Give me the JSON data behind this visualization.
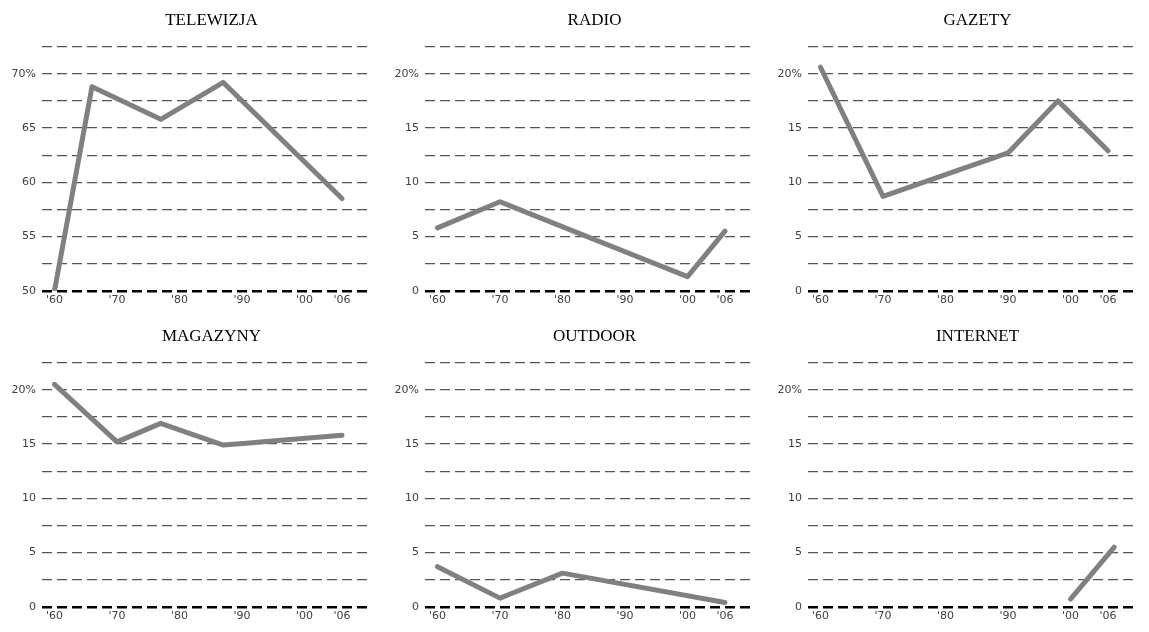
{
  "chart_data": [
    {
      "type": "line",
      "title": "TELEWIZJA",
      "x": [
        1960,
        1966,
        1977,
        1987,
        2006
      ],
      "values": [
        50,
        68.8,
        65.8,
        69.2,
        58.5
      ],
      "color": "#808080",
      "xlim": [
        1958,
        2010
      ],
      "xticks": [
        {
          "value": 1960,
          "label": "'60"
        },
        {
          "value": 1970,
          "label": "'70"
        },
        {
          "value": 1980,
          "label": "'80"
        },
        {
          "value": 1990,
          "label": "'90"
        },
        {
          "value": 2000,
          "label": "'00"
        },
        {
          "value": 2006,
          "label": "'06"
        }
      ],
      "ylim": [
        50,
        72.5
      ],
      "yticks": [
        50,
        {
          "value": 52.5,
          "label": null
        },
        55,
        {
          "value": 57.5,
          "label": null
        },
        60,
        {
          "value": 62.5,
          "label": null
        },
        65,
        {
          "value": 67.5,
          "label": null
        },
        {
          "value": 70,
          "label": "70%"
        },
        {
          "value": 72.5,
          "label": null
        }
      ],
      "grid": "y",
      "marker": "none"
    },
    {
      "type": "line",
      "title": "RADIO",
      "x": [
        1960,
        1970,
        2000,
        2006
      ],
      "values": [
        5.8,
        8.2,
        1.3,
        5.5
      ],
      "color": "#808080",
      "xlim": [
        1958,
        2010
      ],
      "xticks": [
        {
          "value": 1960,
          "label": "'60"
        },
        {
          "value": 1970,
          "label": "'70"
        },
        {
          "value": 1980,
          "label": "'80"
        },
        {
          "value": 1990,
          "label": "'90"
        },
        {
          "value": 2000,
          "label": "'00"
        },
        {
          "value": 2006,
          "label": "'06"
        }
      ],
      "ylim": [
        0,
        22.5
      ],
      "yticks": [
        0,
        {
          "value": 2.5,
          "label": null
        },
        5,
        {
          "value": 7.5,
          "label": null
        },
        10,
        {
          "value": 12.5,
          "label": null
        },
        15,
        {
          "value": 17.5,
          "label": null
        },
        {
          "value": 20,
          "label": "20%"
        },
        {
          "value": 22.5,
          "label": null
        }
      ],
      "grid": "y",
      "marker": "none"
    },
    {
      "type": "line",
      "title": "GAZETY",
      "x": [
        1960,
        1970,
        1990,
        1998,
        2006
      ],
      "values": [
        20.6,
        8.7,
        12.7,
        17.5,
        12.9
      ],
      "color": "#808080",
      "xlim": [
        1958,
        2010
      ],
      "xticks": [
        {
          "value": 1960,
          "label": "'60"
        },
        {
          "value": 1970,
          "label": "'70"
        },
        {
          "value": 1980,
          "label": "'80"
        },
        {
          "value": 1990,
          "label": "'90"
        },
        {
          "value": 2000,
          "label": "'00"
        },
        {
          "value": 2006,
          "label": "'06"
        }
      ],
      "ylim": [
        0,
        22.5
      ],
      "yticks": [
        0,
        {
          "value": 2.5,
          "label": null
        },
        5,
        {
          "value": 7.5,
          "label": null
        },
        10,
        {
          "value": 12.5,
          "label": null
        },
        15,
        {
          "value": 17.5,
          "label": null
        },
        {
          "value": 20,
          "label": "20%"
        },
        {
          "value": 22.5,
          "label": null
        }
      ],
      "grid": "y",
      "marker": "none"
    },
    {
      "type": "line",
      "title": "MAGAZYNY",
      "x": [
        1960,
        1970,
        1977,
        1987,
        2006
      ],
      "values": [
        20.5,
        15.2,
        16.9,
        14.9,
        15.8
      ],
      "color": "#808080",
      "xlim": [
        1958,
        2010
      ],
      "xticks": [
        {
          "value": 1960,
          "label": "'60"
        },
        {
          "value": 1970,
          "label": "'70"
        },
        {
          "value": 1980,
          "label": "'80"
        },
        {
          "value": 1990,
          "label": "'90"
        },
        {
          "value": 2000,
          "label": "'00"
        },
        {
          "value": 2006,
          "label": "'06"
        }
      ],
      "ylim": [
        0,
        22.5
      ],
      "yticks": [
        0,
        {
          "value": 2.5,
          "label": null
        },
        5,
        {
          "value": 7.5,
          "label": null
        },
        10,
        {
          "value": 12.5,
          "label": null
        },
        15,
        {
          "value": 17.5,
          "label": null
        },
        {
          "value": 20,
          "label": "20%"
        },
        {
          "value": 22.5,
          "label": null
        }
      ],
      "grid": "y",
      "marker": "none"
    },
    {
      "type": "line",
      "title": "OUTDOOR",
      "x": [
        1960,
        1970,
        1980,
        2006
      ],
      "values": [
        3.7,
        0.8,
        3.1,
        0.4
      ],
      "color": "#808080",
      "xlim": [
        1958,
        2010
      ],
      "xticks": [
        {
          "value": 1960,
          "label": "'60"
        },
        {
          "value": 1970,
          "label": "'70"
        },
        {
          "value": 1980,
          "label": "'80"
        },
        {
          "value": 1990,
          "label": "'90"
        },
        {
          "value": 2000,
          "label": "'00"
        },
        {
          "value": 2006,
          "label": "'06"
        }
      ],
      "ylim": [
        0,
        22.5
      ],
      "yticks": [
        0,
        {
          "value": 2.5,
          "label": null
        },
        5,
        {
          "value": 7.5,
          "label": null
        },
        10,
        {
          "value": 12.5,
          "label": null
        },
        15,
        {
          "value": 17.5,
          "label": null
        },
        {
          "value": 20,
          "label": "20%"
        },
        {
          "value": 22.5,
          "label": null
        }
      ],
      "grid": "y",
      "marker": "none"
    },
    {
      "type": "line",
      "title": "INTERNET",
      "x": [
        2000,
        2007
      ],
      "values": [
        0.7,
        5.5
      ],
      "color": "#808080",
      "xlim": [
        1958,
        2010
      ],
      "xticks": [
        {
          "value": 1960,
          "label": "'60"
        },
        {
          "value": 1970,
          "label": "'70"
        },
        {
          "value": 1980,
          "label": "'80"
        },
        {
          "value": 1990,
          "label": "'90"
        },
        {
          "value": 2000,
          "label": "'00"
        },
        {
          "value": 2006,
          "label": "'06"
        }
      ],
      "ylim": [
        0,
        22.5
      ],
      "yticks": [
        0,
        {
          "value": 2.5,
          "label": null
        },
        5,
        {
          "value": 7.5,
          "label": null
        },
        10,
        {
          "value": 12.5,
          "label": null
        },
        15,
        {
          "value": 17.5,
          "label": null
        },
        {
          "value": 20,
          "label": "20%"
        },
        {
          "value": 22.5,
          "label": null
        }
      ],
      "grid": "y",
      "marker": "none"
    }
  ]
}
